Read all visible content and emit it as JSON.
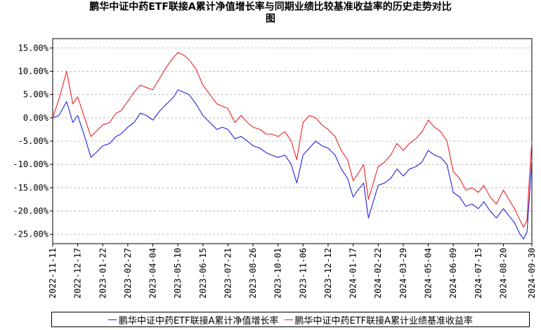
{
  "chart_data": {
    "type": "line",
    "title_line1": "鹏华中证中药ETF联接A累计净值增长率与同期业绩比较基准收益率的历史走势对比",
    "title_line2": "图",
    "x_tick_labels": [
      "2022-11-11",
      "2022-12-17",
      "2023-01-22",
      "2023-02-27",
      "2023-04-04",
      "2023-05-10",
      "2023-06-15",
      "2023-07-21",
      "2023-08-26",
      "2023-10-01",
      "2023-11-06",
      "2023-12-12",
      "2024-01-17",
      "2024-02-22",
      "2024-03-29",
      "2024-05-04",
      "2024-06-09",
      "2024-07-15",
      "2024-08-20",
      "2024-09-30"
    ],
    "y_tick_labels": [
      "15.00%",
      "10.00%",
      "5.00%",
      "0.00%",
      "-5.00%",
      "-10.00%",
      "-15.00%",
      "-20.00%",
      "-25.00%"
    ],
    "y_ticks": [
      15,
      10,
      5,
      0,
      -5,
      -10,
      -15,
      -20,
      -25
    ],
    "ylim": [
      -27,
      17
    ],
    "grid": true,
    "legend_position": "bottom",
    "x": [
      "2022-11-11",
      "2022-11-20",
      "2022-12-01",
      "2022-12-10",
      "2022-12-17",
      "2022-12-28",
      "2023-01-05",
      "2023-01-12",
      "2023-01-22",
      "2023-02-01",
      "2023-02-10",
      "2023-02-17",
      "2023-02-27",
      "2023-03-08",
      "2023-03-17",
      "2023-03-26",
      "2023-04-04",
      "2023-04-14",
      "2023-04-24",
      "2023-05-04",
      "2023-05-10",
      "2023-05-18",
      "2023-05-26",
      "2023-06-05",
      "2023-06-15",
      "2023-06-25",
      "2023-07-05",
      "2023-07-13",
      "2023-07-21",
      "2023-07-31",
      "2023-08-09",
      "2023-08-18",
      "2023-08-26",
      "2023-09-05",
      "2023-09-14",
      "2023-09-22",
      "2023-10-01",
      "2023-10-11",
      "2023-10-20",
      "2023-10-28",
      "2023-11-06",
      "2023-11-15",
      "2023-11-24",
      "2023-12-03",
      "2023-12-12",
      "2023-12-22",
      "2023-12-31",
      "2024-01-09",
      "2024-01-17",
      "2024-01-24",
      "2024-02-01",
      "2024-02-08",
      "2024-02-22",
      "2024-03-02",
      "2024-03-11",
      "2024-03-20",
      "2024-03-29",
      "2024-04-07",
      "2024-04-16",
      "2024-04-25",
      "2024-05-04",
      "2024-05-13",
      "2024-05-22",
      "2024-05-31",
      "2024-06-09",
      "2024-06-18",
      "2024-06-27",
      "2024-07-06",
      "2024-07-15",
      "2024-07-23",
      "2024-08-01",
      "2024-08-10",
      "2024-08-20",
      "2024-08-28",
      "2024-09-05",
      "2024-09-13",
      "2024-09-18",
      "2024-09-23",
      "2024-09-26",
      "2024-09-30"
    ],
    "series": [
      {
        "name": "鹏华中证中药ETF联接A累计净值增长率",
        "color": "#2222dd",
        "values": [
          0.0,
          0.5,
          3.5,
          -1.0,
          0.5,
          -4.5,
          -8.5,
          -7.5,
          -6.0,
          -5.5,
          -4.0,
          -3.5,
          -2.0,
          -1.0,
          1.0,
          0.5,
          -0.5,
          1.5,
          3.0,
          4.5,
          6.0,
          5.5,
          5.0,
          3.0,
          0.5,
          -1.0,
          -2.5,
          -2.0,
          -2.5,
          -4.5,
          -4.0,
          -5.0,
          -6.0,
          -6.5,
          -7.5,
          -8.0,
          -8.5,
          -8.0,
          -10.0,
          -14.0,
          -8.0,
          -6.5,
          -5.0,
          -6.0,
          -6.5,
          -8.0,
          -11.0,
          -13.0,
          -17.0,
          -15.5,
          -14.0,
          -21.5,
          -14.5,
          -14.0,
          -13.0,
          -11.0,
          -12.5,
          -11.0,
          -10.5,
          -9.5,
          -7.0,
          -8.0,
          -8.5,
          -10.0,
          -16.0,
          -17.0,
          -19.0,
          -18.5,
          -19.5,
          -18.0,
          -20.0,
          -21.5,
          -19.5,
          -21.0,
          -22.5,
          -25.0,
          -26.0,
          -24.5,
          -18.0,
          -9.0
        ]
      },
      {
        "name": "鹏华中证中药ETF联接A累计业绩基准收益率",
        "color": "#ee2222",
        "values": [
          0.0,
          4.0,
          10.0,
          3.0,
          4.5,
          -0.5,
          -4.0,
          -3.0,
          -1.5,
          -1.0,
          1.0,
          1.5,
          3.5,
          5.5,
          7.0,
          6.5,
          6.0,
          8.5,
          11.0,
          13.0,
          14.0,
          13.5,
          12.5,
          10.5,
          7.0,
          5.0,
          3.0,
          2.5,
          2.0,
          -1.0,
          0.5,
          -1.0,
          -2.0,
          -2.5,
          -3.5,
          -3.5,
          -4.0,
          -3.0,
          -5.0,
          -9.0,
          -1.0,
          0.5,
          0.0,
          -1.5,
          -2.5,
          -4.0,
          -7.0,
          -9.0,
          -13.5,
          -12.0,
          -10.0,
          -17.5,
          -10.5,
          -9.5,
          -8.0,
          -5.5,
          -7.0,
          -5.5,
          -4.5,
          -3.0,
          -0.5,
          -2.0,
          -3.0,
          -5.0,
          -11.5,
          -13.0,
          -15.5,
          -15.0,
          -16.0,
          -14.5,
          -17.0,
          -18.5,
          -15.5,
          -17.5,
          -19.5,
          -22.0,
          -23.5,
          -22.0,
          -14.0,
          -5.0
        ]
      }
    ]
  }
}
